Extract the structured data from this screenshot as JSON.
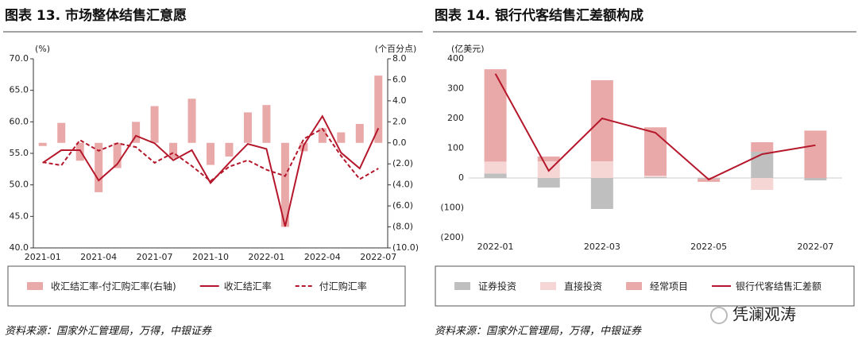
{
  "chart_data": [
    {
      "type": "bar_line",
      "title": "图表 13. 市场整体结售汇意愿",
      "y_unit": "(%)",
      "y2_unit": "(个百分点)",
      "source": "资料来源：国家外汇管理局，万得，中银证券",
      "categories": [
        "2021-01",
        null,
        null,
        "2021-04",
        null,
        null,
        "2021-07",
        null,
        null,
        "2021-10",
        null,
        null,
        "2022-01",
        null,
        null,
        "2022-04",
        null,
        null,
        "2022-07"
      ],
      "ylim": [
        40,
        70
      ],
      "yticks": [
        {
          "value": 40,
          "label": "40.0"
        },
        {
          "value": 45,
          "label": "45.0"
        },
        {
          "value": 50,
          "label": "50.0"
        },
        {
          "value": 55,
          "label": "55.0"
        },
        {
          "value": 60,
          "label": "60.0"
        },
        {
          "value": 65,
          "label": "65.0"
        },
        {
          "value": 70,
          "label": "70.0"
        }
      ],
      "y2lim": [
        -10,
        8
      ],
      "y2ticks": [
        {
          "value": -10,
          "label": "(10.0)"
        },
        {
          "value": -8,
          "label": "(8.0)"
        },
        {
          "value": -6,
          "label": "(6.0)"
        },
        {
          "value": -4,
          "label": "(4.0)"
        },
        {
          "value": -2,
          "label": "(2.0)"
        },
        {
          "value": 0,
          "label": "0.0"
        },
        {
          "value": 2,
          "label": "2.0"
        },
        {
          "value": 4,
          "label": "4.0"
        },
        {
          "value": 6,
          "label": "6.0"
        },
        {
          "value": 8,
          "label": "8.0"
        }
      ],
      "negative_tick_color": "#e00000",
      "series": [
        {
          "name": "收汇结汇率-付汇购汇率(右轴)",
          "kind": "bar",
          "axis": "y2",
          "color": "#eaa9a9",
          "values": [
            -0.3,
            1.9,
            -1.7,
            -4.7,
            -2.4,
            2.0,
            3.5,
            -1.5,
            4.2,
            -2.1,
            -1.3,
            2.9,
            3.6,
            -8.0,
            -0.8,
            1.4,
            1.0,
            1.8,
            6.4
          ]
        },
        {
          "name": "收汇结汇率",
          "kind": "line",
          "color": "#b5172b",
          "dash": false,
          "values": [
            53.5,
            55.5,
            55.5,
            50.7,
            53.3,
            57.8,
            56.6,
            53.9,
            55.5,
            50.3,
            53.5,
            56.5,
            55.7,
            43.4,
            56.3,
            60.9,
            55.1,
            52.6,
            59.0
          ]
        },
        {
          "name": "付汇购汇率",
          "kind": "line",
          "color": "#b5172b",
          "dash": true,
          "values": [
            53.6,
            53.1,
            57.1,
            55.4,
            56.6,
            56.0,
            53.5,
            55.1,
            53.0,
            50.6,
            52.9,
            53.9,
            52.4,
            51.4,
            57.3,
            58.9,
            54.6,
            50.9,
            52.6
          ]
        }
      ]
    },
    {
      "type": "stacked_bar_line",
      "title": "图表 14. 银行代客结售汇差额构成",
      "y_unit": "(亿美元)",
      "source": "资料来源：国家外汇管理局，万得，中银证券",
      "watermark": "凭澜观涛",
      "categories": [
        "2022-01",
        null,
        "2022-03",
        null,
        "2022-05",
        null,
        "2022-07"
      ],
      "ylim": [
        -200,
        400
      ],
      "yticks": [
        {
          "value": -200,
          "label": "(200)"
        },
        {
          "value": -100,
          "label": "(100)"
        },
        0,
        100,
        200,
        300,
        400
      ],
      "negative_tick_color": "#e00000",
      "zero_line": true,
      "series": [
        {
          "name": "证券投资",
          "kind": "bar",
          "color": "#bfbfbf",
          "values": [
            15,
            -32,
            -104,
            3,
            -3,
            88,
            -8
          ]
        },
        {
          "name": "直接投资",
          "kind": "bar",
          "color": "#f6d5d5",
          "values": [
            40,
            56,
            56,
            5,
            3,
            -40,
            0
          ]
        },
        {
          "name": "经常项目",
          "kind": "bar",
          "color": "#eaa9a9",
          "values": [
            310,
            16,
            272,
            162,
            -10,
            32,
            159
          ]
        },
        {
          "name": "银行代客结售汇差额",
          "kind": "line",
          "color": "#b5172b",
          "dash": false,
          "values": [
            350,
            24,
            200,
            152,
            -5,
            80,
            110
          ]
        }
      ]
    }
  ]
}
